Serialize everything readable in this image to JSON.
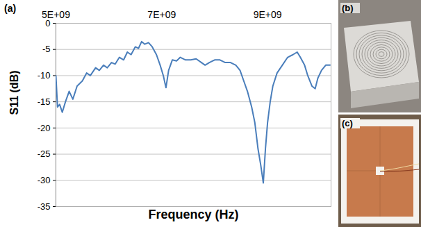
{
  "chart_data": {
    "type": "line",
    "panel_label": "(a)",
    "x_label": "Frequency (Hz)",
    "y_label": "S11 (dB)",
    "x": [
      5000000000.0,
      5030000000.0,
      5070000000.0,
      5120000000.0,
      5180000000.0,
      5250000000.0,
      5320000000.0,
      5400000000.0,
      5500000000.0,
      5580000000.0,
      5650000000.0,
      5750000000.0,
      5820000000.0,
      5900000000.0,
      5970000000.0,
      6050000000.0,
      6120000000.0,
      6200000000.0,
      6280000000.0,
      6350000000.0,
      6420000000.0,
      6500000000.0,
      6560000000.0,
      6620000000.0,
      6680000000.0,
      6750000000.0,
      6820000000.0,
      6900000000.0,
      6970000000.0,
      7030000000.0,
      7080000000.0,
      7130000000.0,
      7200000000.0,
      7280000000.0,
      7350000000.0,
      7450000000.0,
      7550000000.0,
      7650000000.0,
      7750000000.0,
      7820000000.0,
      7900000000.0,
      8000000000.0,
      8100000000.0,
      8200000000.0,
      8300000000.0,
      8400000000.0,
      8480000000.0,
      8550000000.0,
      8620000000.0,
      8700000000.0,
      8760000000.0,
      8820000000.0,
      8870000000.0,
      8920000000.0,
      8960000000.0,
      9000000000.0,
      9050000000.0,
      9100000000.0,
      9180000000.0,
      9280000000.0,
      9380000000.0,
      9480000000.0,
      9560000000.0,
      9620000000.0,
      9700000000.0,
      9760000000.0,
      9840000000.0,
      9900000000.0,
      9950000000.0,
      10020000000.0,
      10100000000.0,
      10180000000.0
    ],
    "values": [
      -10,
      -16,
      -15.5,
      -17,
      -15,
      -13,
      -14.5,
      -12,
      -11,
      -9.5,
      -10,
      -8.5,
      -9,
      -8,
      -8.5,
      -7.5,
      -7.8,
      -6.5,
      -7,
      -5.5,
      -6,
      -4.5,
      -4.8,
      -3.5,
      -4,
      -3.7,
      -4.5,
      -6,
      -8,
      -10,
      -12.3,
      -9,
      -7,
      -7.2,
      -6.5,
      -7,
      -7,
      -6.8,
      -7.5,
      -8,
      -7.5,
      -7,
      -7,
      -7.5,
      -7.5,
      -8,
      -9,
      -11,
      -13,
      -16,
      -19,
      -24,
      -27,
      -30.5,
      -24,
      -19,
      -15,
      -12,
      -9.5,
      -8,
      -6.5,
      -6,
      -5.5,
      -6.5,
      -8,
      -10,
      -12,
      -12.5,
      -10.5,
      -9,
      -8,
      -8
    ],
    "color": "#4a7ebb",
    "xlim": [
      5000000000.0,
      10200000000.0
    ],
    "xticks": [
      {
        "value": 5000000000.0,
        "label": "5E+09"
      },
      {
        "value": 7000000000.0,
        "label": "7E+09"
      },
      {
        "value": 9000000000.0,
        "label": "9E+09"
      }
    ],
    "ylim": [
      -35,
      0
    ],
    "yticks": [
      0,
      -5,
      -10,
      -15,
      -20,
      -25,
      -30,
      -35
    ],
    "grid": true
  },
  "panels": [
    {
      "label": "(b)"
    },
    {
      "label": "(c)"
    }
  ]
}
